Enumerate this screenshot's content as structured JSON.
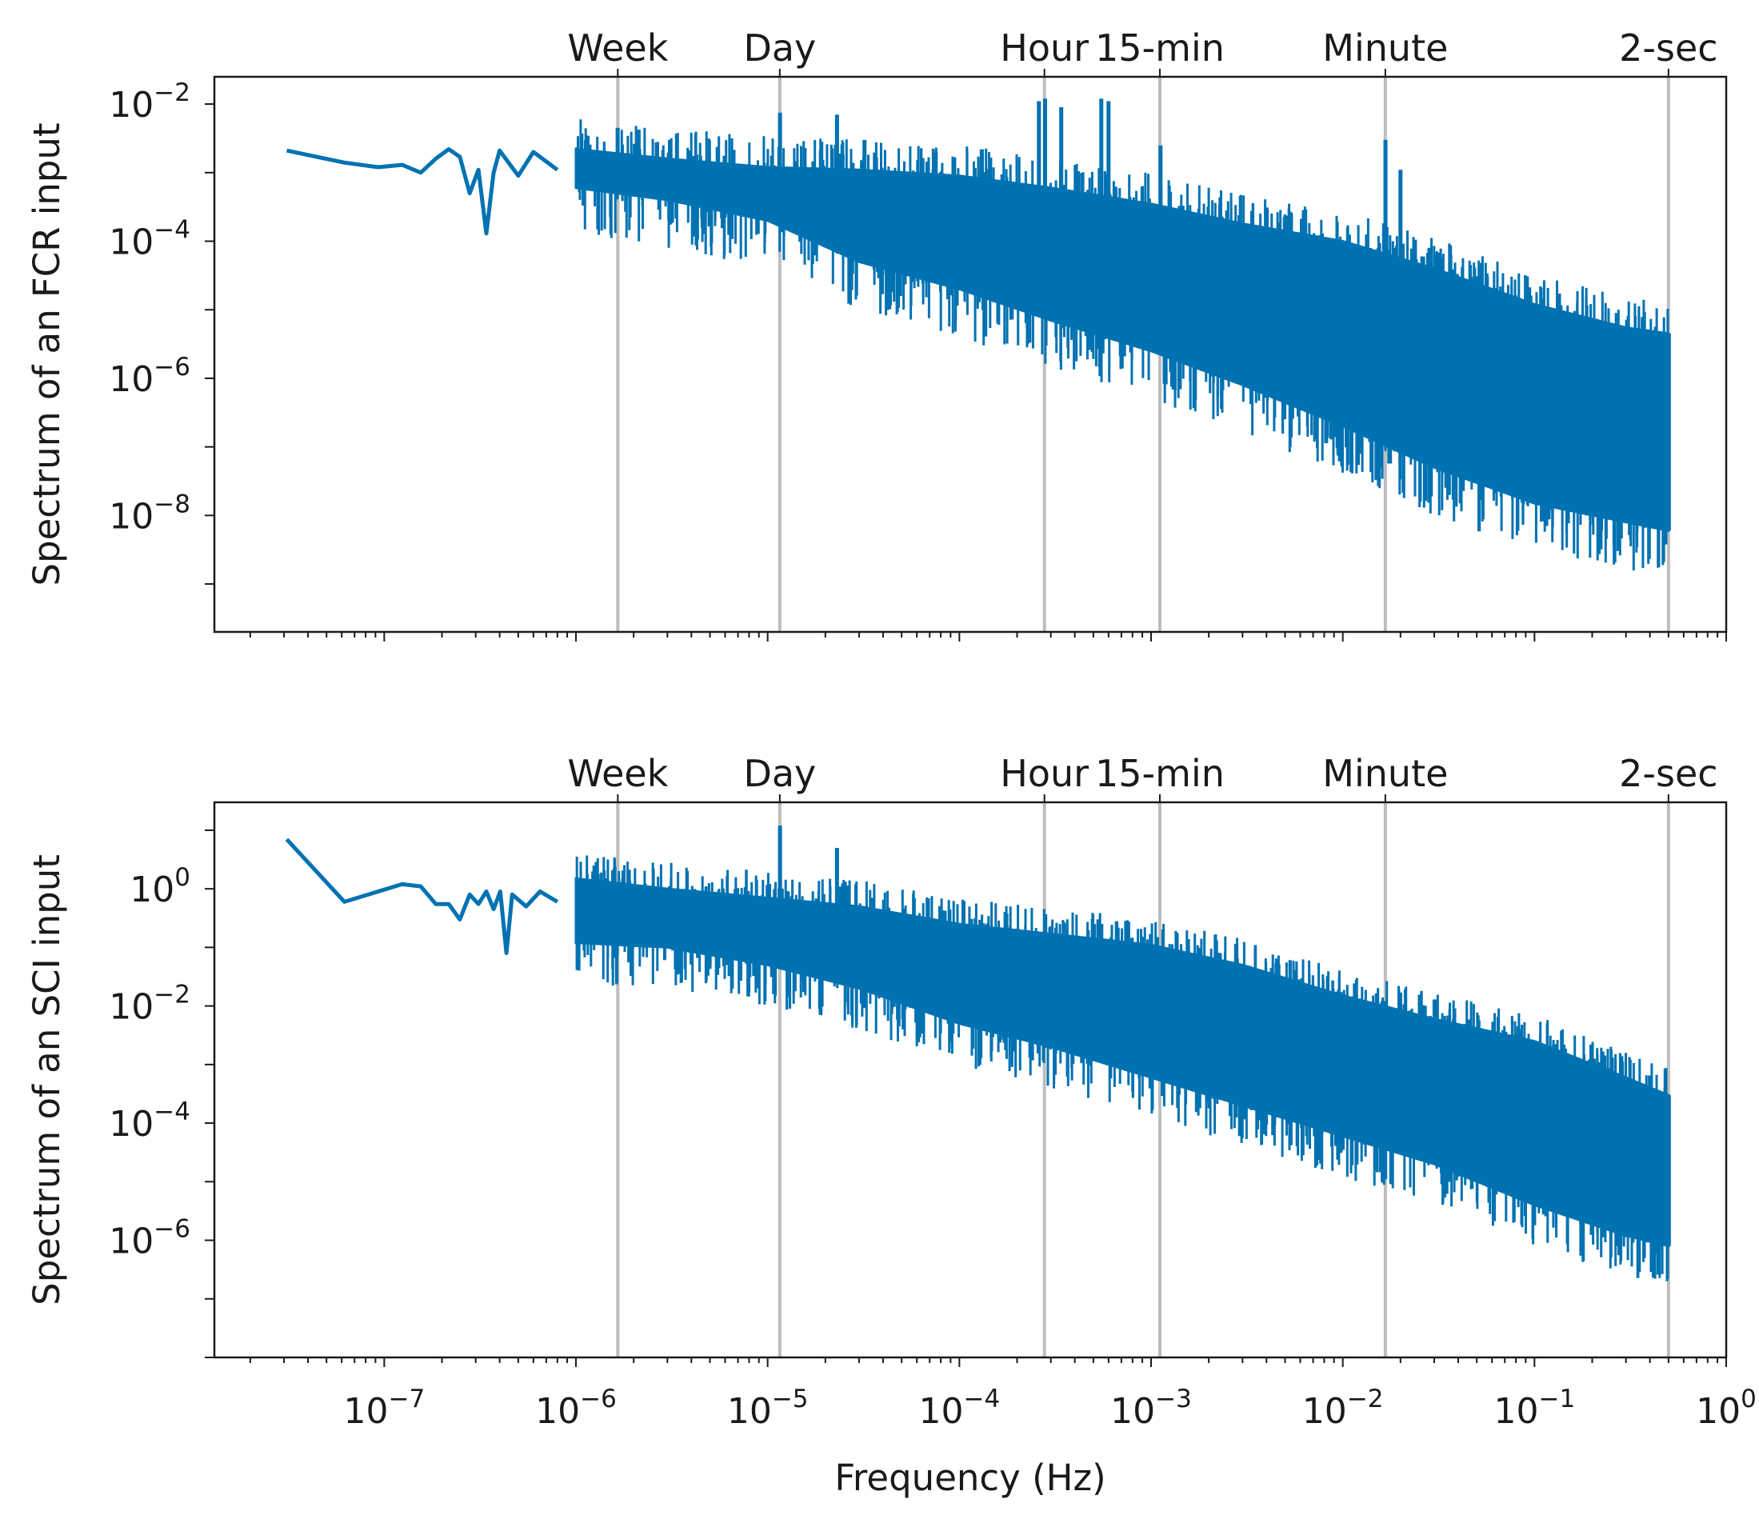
{
  "chart_data": [
    {
      "type": "line",
      "title": "",
      "xlabel": "",
      "ylabel": "Spectrum of an FCR input",
      "x_scale": "log",
      "y_scale": "log",
      "xlim": [
        1.3e-08,
        1.0
      ],
      "ylim": [
        2e-10,
        0.025
      ],
      "y_ticks": [
        {
          "value": 0.01,
          "base": "10",
          "exp": "−2"
        },
        {
          "value": 0.0001,
          "base": "10",
          "exp": "−4"
        },
        {
          "value": 1e-06,
          "base": "10",
          "exp": "−6"
        },
        {
          "value": 1e-08,
          "base": "10",
          "exp": "−8"
        }
      ],
      "series": [
        {
          "name": "FCR spectrum",
          "color": "#0072b2",
          "approx_points": [
            [
              3.1e-08,
              0.0021
            ],
            [
              6.2e-08,
              0.0014
            ],
            [
              9.3e-08,
              0.0012
            ],
            [
              1.24e-07,
              0.0013
            ],
            [
              1.55e-07,
              0.001
            ],
            [
              1.86e-07,
              0.0016
            ],
            [
              2.17e-07,
              0.0022
            ],
            [
              2.48e-07,
              0.0017
            ],
            [
              2.79e-07,
              0.0005
            ],
            [
              3.1e-07,
              0.0011
            ],
            [
              3.41e-07,
              0.00013
            ],
            [
              3.72e-07,
              0.001
            ],
            [
              4e-07,
              0.0021
            ],
            [
              5e-07,
              0.0009
            ],
            [
              6e-07,
              0.002
            ],
            [
              8e-07,
              0.0011
            ],
            [
              1e-06,
              0.0017
            ],
            [
              1.6e-06,
              0.0045
            ],
            [
              3e-06,
              0.0012
            ],
            [
              1e-05,
              0.0007
            ],
            [
              0.0001,
              0.00035
            ],
            [
              0.00027,
              0.008
            ],
            [
              0.001,
              0.00025
            ],
            [
              0.0167,
              0.003
            ],
            [
              0.1,
              2e-05
            ],
            [
              0.5,
              4e-06
            ]
          ],
          "upper_envelope": [
            [
              1e-06,
              0.0022
            ],
            [
              3e-06,
              0.0016
            ],
            [
              1e-05,
              0.0012
            ],
            [
              3e-05,
              0.0011
            ],
            [
              0.0001,
              0.0009
            ],
            [
              0.0003,
              0.0006
            ],
            [
              0.001,
              0.00035
            ],
            [
              0.003,
              0.00018
            ],
            [
              0.01,
              0.0001
            ],
            [
              0.03,
              4e-05
            ],
            [
              0.1,
              1.2e-05
            ],
            [
              0.3,
              5.5e-06
            ],
            [
              0.5,
              4.5e-06
            ]
          ],
          "lower_envelope": [
            [
              1e-06,
              0.0006
            ],
            [
              3e-06,
              0.0004
            ],
            [
              1e-05,
              0.0002
            ],
            [
              3e-05,
              5e-05
            ],
            [
              0.0001,
              2e-05
            ],
            [
              0.0003,
              7e-06
            ],
            [
              0.001,
              2.5e-06
            ],
            [
              0.003,
              8e-07
            ],
            [
              0.01,
              2e-07
            ],
            [
              0.03,
              5e-08
            ],
            [
              0.1,
              1.5e-08
            ],
            [
              0.3,
              8e-09
            ],
            [
              0.5,
              6e-09
            ]
          ],
          "peaks": [
            {
              "f": 1.65e-06,
              "v": 0.0045
            },
            {
              "f": 1.16e-05,
              "v": 0.0075
            },
            {
              "f": 2.3e-05,
              "v": 0.007
            },
            {
              "f": 3.2e-05,
              "v": 0.003
            },
            {
              "f": 0.00026,
              "v": 0.011
            },
            {
              "f": 0.00028,
              "v": 0.012
            },
            {
              "f": 0.00034,
              "v": 0.009
            },
            {
              "f": 0.00055,
              "v": 0.012
            },
            {
              "f": 0.0006,
              "v": 0.011
            },
            {
              "f": 0.00112,
              "v": 0.0025
            },
            {
              "f": 0.0167,
              "v": 0.003
            },
            {
              "f": 0.02,
              "v": 0.0011
            }
          ]
        }
      ],
      "period_lines": [
        {
          "label": "Week",
          "freq": 1.653e-06
        },
        {
          "label": "Day",
          "freq": 1.157e-05
        },
        {
          "label": "Hour",
          "freq": 0.0002778
        },
        {
          "label": "15-min",
          "freq": 0.001111
        },
        {
          "label": "Minute",
          "freq": 0.01667
        },
        {
          "label": "2-sec",
          "freq": 0.5
        }
      ]
    },
    {
      "type": "line",
      "title": "",
      "xlabel": "Frequency (Hz)",
      "ylabel": "Spectrum of an SCI input",
      "x_scale": "log",
      "y_scale": "log",
      "xlim": [
        1.3e-08,
        1.0
      ],
      "ylim": [
        1e-08,
        30
      ],
      "x_ticks": [
        {
          "value": 1e-07,
          "base": "10",
          "exp": "−7"
        },
        {
          "value": 1e-06,
          "base": "10",
          "exp": "−6"
        },
        {
          "value": 1e-05,
          "base": "10",
          "exp": "−5"
        },
        {
          "value": 0.0001,
          "base": "10",
          "exp": "−4"
        },
        {
          "value": 0.001,
          "base": "10",
          "exp": "−3"
        },
        {
          "value": 0.01,
          "base": "10",
          "exp": "−2"
        },
        {
          "value": 0.1,
          "base": "10",
          "exp": "−1"
        },
        {
          "value": 1,
          "base": "10",
          "exp": "0"
        }
      ],
      "y_ticks": [
        {
          "value": 1,
          "base": "10",
          "exp": "0"
        },
        {
          "value": 0.01,
          "base": "10",
          "exp": "−2"
        },
        {
          "value": 0.0001,
          "base": "10",
          "exp": "−4"
        },
        {
          "value": 1e-06,
          "base": "10",
          "exp": "−6"
        }
      ],
      "series": [
        {
          "name": "SCI spectrum",
          "color": "#0072b2",
          "approx_points": [
            [
              3.1e-08,
              7
            ],
            [
              6.2e-08,
              0.6
            ],
            [
              9.3e-08,
              0.9
            ],
            [
              1.24e-07,
              1.2
            ],
            [
              1.55e-07,
              1.1
            ],
            [
              1.86e-07,
              0.55
            ],
            [
              2.17e-07,
              0.55
            ],
            [
              2.48e-07,
              0.3
            ],
            [
              2.79e-07,
              0.8
            ],
            [
              3.1e-07,
              0.55
            ],
            [
              3.41e-07,
              0.9
            ],
            [
              3.72e-07,
              0.45
            ],
            [
              4.03e-07,
              0.9
            ],
            [
              4.34e-07,
              0.08
            ],
            [
              4.65e-07,
              0.8
            ],
            [
              5.5e-07,
              0.5
            ],
            [
              6.5e-07,
              0.9
            ],
            [
              8e-07,
              0.6
            ],
            [
              1e-06,
              0.7
            ],
            [
              1.6e-06,
              0.5
            ],
            [
              1.16e-05,
              12
            ],
            [
              2.3e-05,
              5
            ],
            [
              0.0001,
              0.15
            ],
            [
              0.001,
              0.06
            ],
            [
              0.01,
              0.005
            ],
            [
              0.1,
              0.0005
            ],
            [
              0.5,
              5e-05
            ]
          ],
          "upper_envelope": [
            [
              1e-06,
              1.5
            ],
            [
              3e-06,
              1.0
            ],
            [
              1e-05,
              0.7
            ],
            [
              3e-05,
              0.5
            ],
            [
              0.0001,
              0.25
            ],
            [
              0.0003,
              0.17
            ],
            [
              0.001,
              0.11
            ],
            [
              0.003,
              0.05
            ],
            [
              0.01,
              0.015
            ],
            [
              0.03,
              0.006
            ],
            [
              0.1,
              0.0025
            ],
            [
              0.3,
              0.0006
            ],
            [
              0.5,
              0.0003
            ]
          ],
          "lower_envelope": [
            [
              1e-06,
              0.12
            ],
            [
              3e-06,
              0.1
            ],
            [
              1e-05,
              0.05
            ],
            [
              3e-05,
              0.02
            ],
            [
              0.0001,
              0.005
            ],
            [
              0.0003,
              0.002
            ],
            [
              0.001,
              0.0006
            ],
            [
              0.003,
              0.0002
            ],
            [
              0.01,
              6e-05
            ],
            [
              0.03,
              2e-05
            ],
            [
              0.1,
              4e-06
            ],
            [
              0.3,
              1.2e-06
            ],
            [
              0.5,
              8e-07
            ]
          ],
          "peaks": [
            {
              "f": 1.16e-05,
              "v": 12
            },
            {
              "f": 2.3e-05,
              "v": 5
            },
            {
              "f": 3.5e-05,
              "v": 0.7
            },
            {
              "f": 1.03e-06,
              "v": 1.5
            },
            {
              "f": 0.4,
              "v": 0.00065
            }
          ]
        }
      ],
      "period_lines": [
        {
          "label": "Week",
          "freq": 1.653e-06
        },
        {
          "label": "Day",
          "freq": 1.157e-05
        },
        {
          "label": "Hour",
          "freq": 0.0002778
        },
        {
          "label": "15-min",
          "freq": 0.001111
        },
        {
          "label": "Minute",
          "freq": 0.01667
        },
        {
          "label": "2-sec",
          "freq": 0.5
        }
      ]
    }
  ]
}
